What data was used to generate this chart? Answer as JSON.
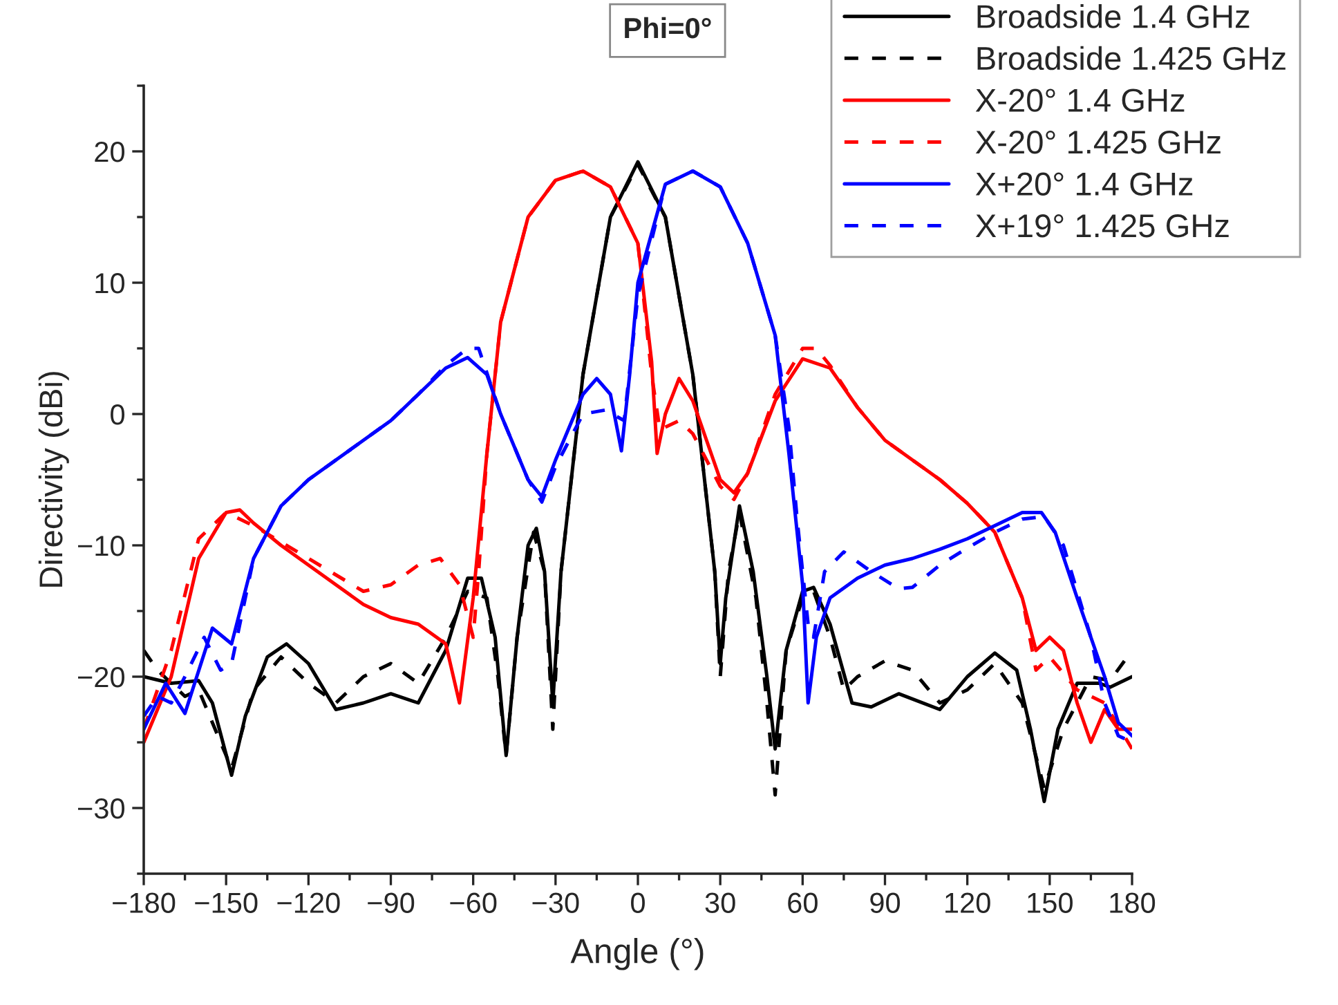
{
  "chart_data": {
    "type": "line",
    "title": "Phi=0°",
    "xlabel": "Angle (°)",
    "ylabel": "Directivity (dBi)",
    "xlim": [
      -180,
      180
    ],
    "xticks": [
      {
        "value": -180,
        "label": "−180"
      },
      {
        "value": -150,
        "label": "−150"
      },
      {
        "value": -120,
        "label": "−120"
      },
      {
        "value": -90,
        "label": "−90"
      },
      {
        "value": -60,
        "label": "−60"
      },
      {
        "value": -30,
        "label": "−30"
      },
      0,
      30,
      60,
      90,
      120,
      150,
      180
    ],
    "ylim": [
      -35,
      25
    ],
    "yticks": [
      {
        "value": -30,
        "label": "−30"
      },
      {
        "value": -20,
        "label": "−20"
      },
      {
        "value": -10,
        "label": "−10"
      },
      0,
      10,
      20
    ],
    "grid": false,
    "legend": "top right",
    "marker": "none",
    "series": [
      {
        "name": "Broadside 1.4 GHz",
        "color": "#000000",
        "line_style": "solid",
        "x": [
          -180,
          -170,
          -160,
          -155,
          -148,
          -143,
          -135,
          -128,
          -120,
          -110,
          -100,
          -90,
          -80,
          -70,
          -62,
          -57,
          -52,
          -48,
          -44,
          -40,
          -37,
          -34,
          -31,
          -28,
          -20,
          -10,
          0,
          10,
          20,
          28,
          30,
          32,
          37,
          42,
          47,
          50,
          54,
          60,
          64,
          70,
          78,
          85,
          95,
          110,
          120,
          130,
          138,
          143,
          148,
          153,
          160,
          168,
          172,
          180
        ],
        "values": [
          -20,
          -20.5,
          -20.3,
          -22,
          -27.5,
          -23,
          -18.5,
          -17.5,
          -19,
          -22.5,
          -22,
          -21.3,
          -22,
          -18,
          -12.5,
          -12.5,
          -17,
          -26,
          -17,
          -10,
          -8.7,
          -12,
          -22,
          -12,
          3,
          15,
          19.2,
          15,
          3,
          -12,
          -19,
          -14,
          -7,
          -12,
          -20,
          -25.5,
          -18,
          -13.5,
          -13.2,
          -16,
          -22,
          -22.3,
          -21.3,
          -22.5,
          -20,
          -18.2,
          -19.5,
          -24,
          -29.5,
          -24,
          -20.5,
          -20.5,
          -20.8,
          -20
        ]
      },
      {
        "name": "Broadside 1.425 GHz",
        "color": "#000000",
        "line_style": "dashed",
        "x": [
          -180,
          -175,
          -165,
          -160,
          -148,
          -140,
          -130,
          -120,
          -110,
          -100,
          -90,
          -80,
          -70,
          -62,
          -55,
          -51,
          -48,
          -44,
          -38,
          -34,
          -31,
          -28,
          -20,
          -10,
          0,
          10,
          20,
          28,
          30,
          33,
          37,
          43,
          47,
          50,
          54,
          60,
          64,
          70,
          75,
          80,
          90,
          100,
          110,
          120,
          130,
          140,
          148,
          155,
          165,
          172,
          180
        ],
        "values": [
          -18,
          -19.5,
          -21.5,
          -21,
          -27,
          -21,
          -18.5,
          -20.5,
          -22,
          -20,
          -19,
          -20.5,
          -17,
          -13.5,
          -14,
          -20,
          -26,
          -17,
          -9,
          -12,
          -24,
          -12,
          3,
          15,
          19,
          15,
          3,
          -12,
          -20,
          -12,
          -7.5,
          -14,
          -22,
          -29,
          -18,
          -14,
          -13.5,
          -17,
          -21,
          -20,
          -18.8,
          -19.5,
          -22,
          -21,
          -19,
          -22,
          -28.5,
          -24,
          -20,
          -20.3,
          -18
        ]
      },
      {
        "name": "X-20° 1.4 GHz",
        "color": "#ff0000",
        "line_style": "solid",
        "x": [
          -180,
          -170,
          -160,
          -150,
          -145,
          -140,
          -130,
          -120,
          -110,
          -100,
          -90,
          -80,
          -70,
          -65,
          -60,
          -55,
          -50,
          -40,
          -30,
          -20,
          -10,
          0,
          5,
          7,
          10,
          15,
          20,
          25,
          30,
          35,
          40,
          50,
          60,
          70,
          80,
          90,
          100,
          110,
          120,
          130,
          140,
          145,
          150,
          155,
          160,
          165,
          170,
          175,
          180
        ],
        "values": [
          -25,
          -20,
          -11,
          -7.5,
          -7.3,
          -8.3,
          -10,
          -11.5,
          -13,
          -14.5,
          -15.5,
          -16,
          -17.5,
          -22,
          -14,
          -3,
          7,
          15,
          17.8,
          18.5,
          17.3,
          13,
          4,
          -3,
          0,
          2.7,
          1,
          -2,
          -5,
          -6,
          -4.5,
          1,
          4.2,
          3.5,
          0.5,
          -2,
          -3.5,
          -5,
          -6.8,
          -9,
          -14,
          -18,
          -17,
          -18,
          -22,
          -25,
          -22.5,
          -24,
          -24
        ]
      },
      {
        "name": "X-20° 1.425 GHz",
        "color": "#ff0000",
        "line_style": "dashed",
        "x": [
          -180,
          -170,
          -160,
          -150,
          -140,
          -120,
          -100,
          -90,
          -80,
          -72,
          -65,
          -60,
          -58,
          -55,
          -50,
          -40,
          -30,
          -20,
          -10,
          0,
          5,
          8,
          15,
          20,
          25,
          30,
          35,
          40,
          50,
          60,
          65,
          70,
          80,
          90,
          100,
          110,
          120,
          130,
          140,
          145,
          150,
          160,
          170,
          180
        ],
        "values": [
          -24,
          -18,
          -9.5,
          -7.5,
          -8.5,
          -11,
          -13.5,
          -13,
          -11.5,
          -11,
          -13,
          -17,
          -12,
          -3,
          7,
          15,
          17.8,
          18.5,
          17.3,
          13,
          3,
          -1.2,
          -0.5,
          -1.5,
          -3.5,
          -5.5,
          -6.5,
          -4.5,
          1.5,
          5,
          5,
          3.7,
          0.5,
          -2,
          -3.5,
          -5,
          -6.8,
          -9,
          -14,
          -19.5,
          -18.5,
          -21,
          -22,
          -25.5
        ]
      },
      {
        "name": "X+20° 1.4 GHz",
        "color": "#0000ff",
        "line_style": "solid",
        "x": [
          -180,
          -172,
          -165,
          -155,
          -148,
          -140,
          -130,
          -120,
          -110,
          -100,
          -90,
          -80,
          -70,
          -62,
          -55,
          -50,
          -40,
          -35,
          -30,
          -20,
          -15,
          -10,
          -6,
          -3,
          0,
          10,
          20,
          30,
          40,
          50,
          55,
          60,
          62,
          65,
          70,
          80,
          90,
          100,
          110,
          120,
          130,
          140,
          147,
          152,
          160,
          170,
          175,
          180
        ],
        "values": [
          -24,
          -20.5,
          -22.8,
          -16.3,
          -17.5,
          -11,
          -7,
          -5,
          -3.5,
          -2,
          -0.5,
          1.5,
          3.5,
          4.3,
          3,
          0,
          -5,
          -6.3,
          -3.5,
          1.5,
          2.7,
          1.5,
          -2.8,
          3,
          10,
          17.5,
          18.5,
          17.3,
          13,
          6,
          -3,
          -13,
          -22,
          -17,
          -14,
          -12.5,
          -11.5,
          -11,
          -10.3,
          -9.5,
          -8.5,
          -7.5,
          -7.5,
          -9,
          -14,
          -20,
          -23.5,
          -24.5
        ]
      },
      {
        "name": "X+19° 1.425 GHz",
        "color": "#0000ff",
        "line_style": "dashed",
        "x": [
          -180,
          -175,
          -170,
          -165,
          -158,
          -152,
          -148,
          -140,
          -130,
          -120,
          -110,
          -100,
          -90,
          -80,
          -70,
          -62,
          -58,
          -50,
          -40,
          -35,
          -30,
          -20,
          -12,
          -5,
          0,
          10,
          20,
          30,
          40,
          50,
          55,
          58,
          62,
          64,
          68,
          75,
          85,
          95,
          100,
          110,
          120,
          130,
          140,
          148,
          155,
          165,
          170,
          175,
          180
        ],
        "values": [
          -23,
          -21.5,
          -22,
          -20,
          -17,
          -19.5,
          -19,
          -11,
          -7,
          -5,
          -3.5,
          -2,
          -0.5,
          1.5,
          3.7,
          5,
          5,
          0,
          -5,
          -6.7,
          -4,
          0,
          0.3,
          -0.5,
          9,
          17.5,
          18.5,
          17.3,
          13,
          6,
          -1,
          -8,
          -16,
          -17,
          -12,
          -10.5,
          -12,
          -13.3,
          -13.2,
          -11.5,
          -10.2,
          -9,
          -8,
          -7.8,
          -10,
          -17,
          -22,
          -24.5,
          -25
        ]
      }
    ]
  }
}
